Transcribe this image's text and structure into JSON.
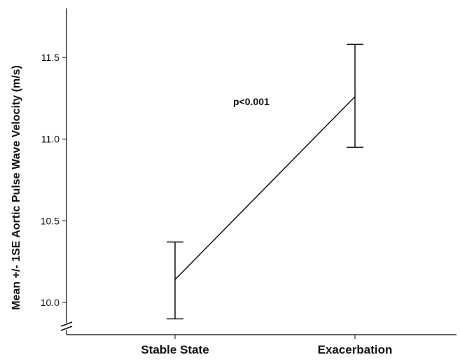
{
  "chart_data": {
    "type": "line",
    "title": "",
    "xlabel": "",
    "ylabel": "Mean +/- 1SE Aortic Pulse Wave Velocity (m/s)",
    "categories": [
      "Stable State",
      "Exacerbation"
    ],
    "series": [
      {
        "values": [
          10.14,
          11.26
        ],
        "error_low": [
          9.9,
          10.95
        ],
        "error_high": [
          10.37,
          11.58
        ]
      }
    ],
    "yticks": [
      "10.0",
      "10.5",
      "11.0",
      "11.5"
    ],
    "ylim": [
      9.78,
      11.78
    ],
    "y_axis_break": true,
    "grid": false,
    "legend": "none",
    "annotation": "p<0.001",
    "colors": {
      "line": "#111111",
      "axis": "#333333"
    }
  }
}
